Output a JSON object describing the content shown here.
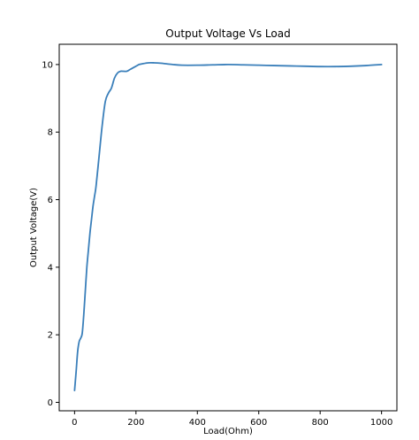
{
  "chart_data": {
    "type": "line",
    "title": "Output Voltage Vs Load",
    "xlabel": "Load(Ohm)",
    "ylabel": "Output Voltage(V)",
    "xlim": [
      -50,
      1050
    ],
    "ylim": [
      -0.25,
      10.6
    ],
    "xticks": [
      0,
      200,
      400,
      600,
      800,
      1000
    ],
    "yticks": [
      0,
      2,
      4,
      6,
      8,
      10
    ],
    "grid": false,
    "series": [
      {
        "color": "#3a7fba",
        "x": [
          0,
          5,
          10,
          15,
          20,
          25,
          30,
          35,
          40,
          45,
          50,
          55,
          60,
          65,
          70,
          80,
          90,
          100,
          110,
          120,
          130,
          140,
          150,
          160,
          170,
          180,
          190,
          200,
          210,
          220,
          240,
          260,
          280,
          300,
          320,
          350,
          400,
          450,
          500,
          550,
          600,
          650,
          700,
          750,
          800,
          850,
          900,
          950,
          1000
        ],
        "y": [
          0.35,
          0.9,
          1.5,
          1.8,
          1.9,
          2.05,
          2.6,
          3.3,
          4.0,
          4.5,
          5.0,
          5.4,
          5.8,
          6.1,
          6.4,
          7.3,
          8.2,
          8.9,
          9.15,
          9.3,
          9.6,
          9.75,
          9.8,
          9.8,
          9.8,
          9.85,
          9.9,
          9.95,
          10.0,
          10.02,
          10.05,
          10.05,
          10.04,
          10.02,
          10.0,
          9.98,
          9.98,
          9.99,
          10.0,
          9.99,
          9.98,
          9.97,
          9.96,
          9.95,
          9.94,
          9.94,
          9.95,
          9.97,
          10.0
        ]
      }
    ]
  }
}
